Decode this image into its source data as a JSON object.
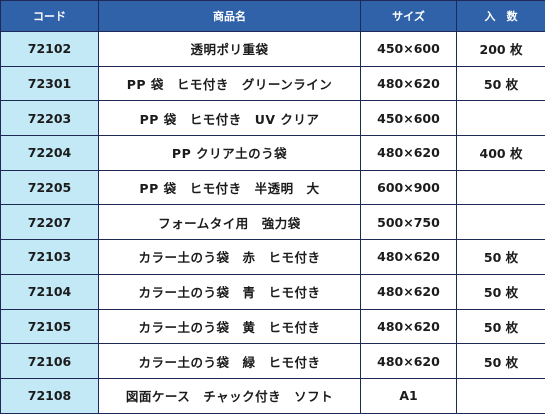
{
  "table": {
    "headers": {
      "code": "コード",
      "name": "商品名",
      "size": "サイズ",
      "quantity": "入　数"
    },
    "rows": [
      {
        "code": "72102",
        "name": "透明ポリ重袋",
        "size": "450×600",
        "quantity": "200 枚"
      },
      {
        "code": "72301",
        "name": "PP 袋　ヒモ付き　グリーンライン",
        "size": "480×620",
        "quantity": "50 枚"
      },
      {
        "code": "72203",
        "name": "PP 袋　ヒモ付き　UV クリア",
        "size": "450×600",
        "quantity": ""
      },
      {
        "code": "72204",
        "name": "PP クリア土のう袋",
        "size": "480×620",
        "quantity": "400 枚"
      },
      {
        "code": "72205",
        "name": "PP 袋　ヒモ付き　半透明　大",
        "size": "600×900",
        "quantity": ""
      },
      {
        "code": "72207",
        "name": "フォームタイ用　強力袋",
        "size": "500×750",
        "quantity": ""
      },
      {
        "code": "72103",
        "name": "カラー土のう袋　赤　ヒモ付き",
        "size": "480×620",
        "quantity": "50 枚"
      },
      {
        "code": "72104",
        "name": "カラー土のう袋　青　ヒモ付き",
        "size": "480×620",
        "quantity": "50 枚"
      },
      {
        "code": "72105",
        "name": "カラー土のう袋　黄　ヒモ付き",
        "size": "480×620",
        "quantity": "50 枚"
      },
      {
        "code": "72106",
        "name": "カラー土のう袋　緑　ヒモ付き",
        "size": "480×620",
        "quantity": "50 枚"
      },
      {
        "code": "72108",
        "name": "図面ケース　チャック付き　ソフト",
        "size": "A1",
        "quantity": ""
      }
    ]
  },
  "colors": {
    "header_bg": "#2f62a8",
    "code_cell_bg": "#c3e9f7",
    "border": "#1e2a55"
  }
}
